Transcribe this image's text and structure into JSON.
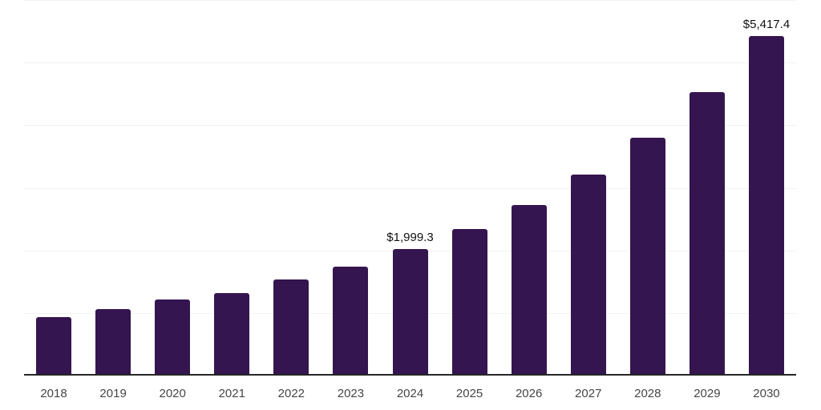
{
  "chart_data": {
    "type": "bar",
    "title": "",
    "xlabel": "",
    "ylabel": "",
    "categories": [
      "2018",
      "2019",
      "2020",
      "2021",
      "2022",
      "2023",
      "2024",
      "2025",
      "2026",
      "2027",
      "2028",
      "2029",
      "2030"
    ],
    "values": [
      915,
      1040,
      1200,
      1298,
      1513,
      1716,
      1999.3,
      2322,
      2715,
      3199,
      3785,
      4520,
      5417.4
    ],
    "data_labels": [
      "",
      "",
      "",
      "",
      "",
      "",
      "$1,999.3",
      "",
      "",
      "",
      "",
      "",
      "$5,417.4"
    ],
    "ylim": [
      0,
      6000
    ],
    "gridline_values": [
      1000,
      2000,
      3000,
      4000,
      5000,
      6000
    ],
    "grid": "horizontal",
    "legend": "none",
    "colors": {
      "bar": "#35154f",
      "axis_line": "#262626",
      "gridline": "#f2f2f2",
      "tick_label": "#464646",
      "data_label": "#111111",
      "background": "#ffffff"
    }
  }
}
